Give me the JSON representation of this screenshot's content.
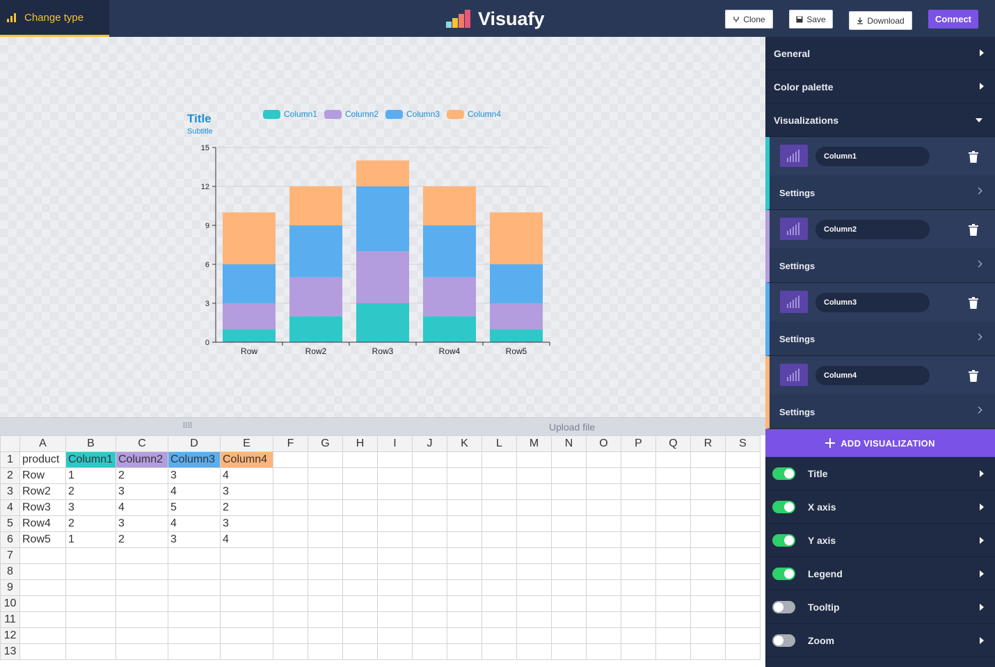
{
  "toolbar": {
    "change_type_label": "Change type",
    "brand_name": "Visuafy",
    "clone_label": "Clone",
    "save_label": "Save",
    "download_label": "Download",
    "connect_label": "Connect"
  },
  "chart_data": {
    "type": "bar",
    "stacked": true,
    "title": "Title",
    "subtitle": "Subtitle",
    "categories": [
      "Row",
      "Row2",
      "Row3",
      "Row4",
      "Row5"
    ],
    "series": [
      {
        "name": "Column1",
        "color": "#2ec8c8",
        "values": [
          1,
          2,
          3,
          2,
          1
        ]
      },
      {
        "name": "Column2",
        "color": "#b39ddf",
        "values": [
          2,
          3,
          4,
          3,
          2
        ]
      },
      {
        "name": "Column3",
        "color": "#5aaeef",
        "values": [
          3,
          4,
          5,
          4,
          3
        ]
      },
      {
        "name": "Column4",
        "color": "#ffb57a",
        "values": [
          4,
          3,
          2,
          3,
          4
        ]
      }
    ],
    "ylim": [
      0,
      15
    ],
    "yticks": [
      0,
      3,
      6,
      9,
      12,
      15
    ],
    "grid": true,
    "legend_position": "top"
  },
  "sheet": {
    "columns": [
      "A",
      "B",
      "C",
      "D",
      "E",
      "F",
      "G",
      "H",
      "I",
      "J",
      "K",
      "L",
      "M",
      "N",
      "O",
      "P",
      "Q",
      "R",
      "S"
    ],
    "row_numbers": [
      "1",
      "2",
      "3",
      "4",
      "5",
      "6",
      "7",
      "8",
      "9",
      "10",
      "11",
      "12",
      "13"
    ],
    "header_cells": [
      "product",
      "Column1",
      "Column2",
      "Column3",
      "Column4"
    ],
    "header_colors": [
      "",
      "#2ec8c8",
      "#b39ddf",
      "#5aaeef",
      "#ffb57a"
    ],
    "rows": [
      [
        "Row",
        "1",
        "2",
        "3",
        "4"
      ],
      [
        "Row2",
        "2",
        "3",
        "4",
        "3"
      ],
      [
        "Row3",
        "3",
        "4",
        "5",
        "2"
      ],
      [
        "Row4",
        "2",
        "3",
        "4",
        "3"
      ],
      [
        "Row5",
        "1",
        "2",
        "3",
        "4"
      ]
    ],
    "upload_label": "Upload file",
    "handle_glyph": "⠿⠿"
  },
  "panel": {
    "sections": [
      {
        "label": "General"
      },
      {
        "label": "Color palette"
      },
      {
        "label": "Visualizations"
      }
    ],
    "visualizations": [
      {
        "name": "Column1",
        "color": "#2ec8c8",
        "settings_label": "Settings"
      },
      {
        "name": "Column2",
        "color": "#b39ddf",
        "settings_label": "Settings"
      },
      {
        "name": "Column3",
        "color": "#5aaeef",
        "settings_label": "Settings"
      },
      {
        "name": "Column4",
        "color": "#ffb57a",
        "settings_label": "Settings"
      }
    ],
    "add_visualization_label": "ADD VISUALIZATION",
    "toggles": [
      {
        "label": "Title",
        "on": true
      },
      {
        "label": "X axis",
        "on": true
      },
      {
        "label": "Y axis",
        "on": true
      },
      {
        "label": "Legend",
        "on": true
      },
      {
        "label": "Tooltip",
        "on": false
      },
      {
        "label": "Zoom",
        "on": false
      }
    ]
  }
}
